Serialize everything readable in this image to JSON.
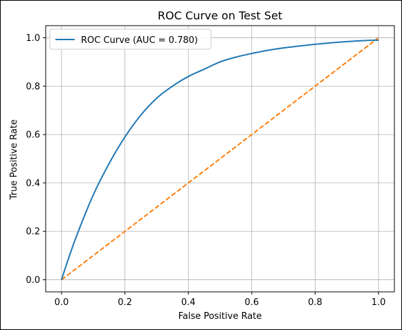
{
  "chart_data": {
    "type": "line",
    "title": "ROC Curve on Test Set",
    "xlabel": "False Positive Rate",
    "ylabel": "True Positive Rate",
    "xlim": [
      -0.05,
      1.05
    ],
    "ylim": [
      -0.05,
      1.05
    ],
    "xticks": [
      0.0,
      0.2,
      0.4,
      0.6,
      0.8,
      1.0
    ],
    "yticks": [
      0.0,
      0.2,
      0.4,
      0.6,
      0.8,
      1.0
    ],
    "xtick_labels": [
      "0.0",
      "0.2",
      "0.4",
      "0.6",
      "0.8",
      "1.0"
    ],
    "ytick_labels": [
      "0.0",
      "0.2",
      "0.4",
      "0.6",
      "0.8",
      "1.0"
    ],
    "grid": true,
    "legend_position": "top-left",
    "series": [
      {
        "name": "ROC Curve (AUC = 0.780)",
        "color": "#1f77b4",
        "style": "solid",
        "x": [
          0.0,
          0.02,
          0.05,
          0.1,
          0.15,
          0.2,
          0.25,
          0.3,
          0.35,
          0.4,
          0.45,
          0.5,
          0.55,
          0.6,
          0.65,
          0.7,
          0.75,
          0.8,
          0.85,
          0.9,
          0.95,
          1.0
        ],
        "y": [
          0.0,
          0.08,
          0.19,
          0.35,
          0.48,
          0.59,
          0.68,
          0.75,
          0.8,
          0.84,
          0.87,
          0.9,
          0.92,
          0.935,
          0.948,
          0.958,
          0.966,
          0.973,
          0.979,
          0.984,
          0.988,
          0.99
        ]
      },
      {
        "name": "",
        "color": "#ff7f0e",
        "style": "dashed",
        "x": [
          0.0,
          1.0
        ],
        "y": [
          0.0,
          1.0
        ]
      }
    ]
  }
}
